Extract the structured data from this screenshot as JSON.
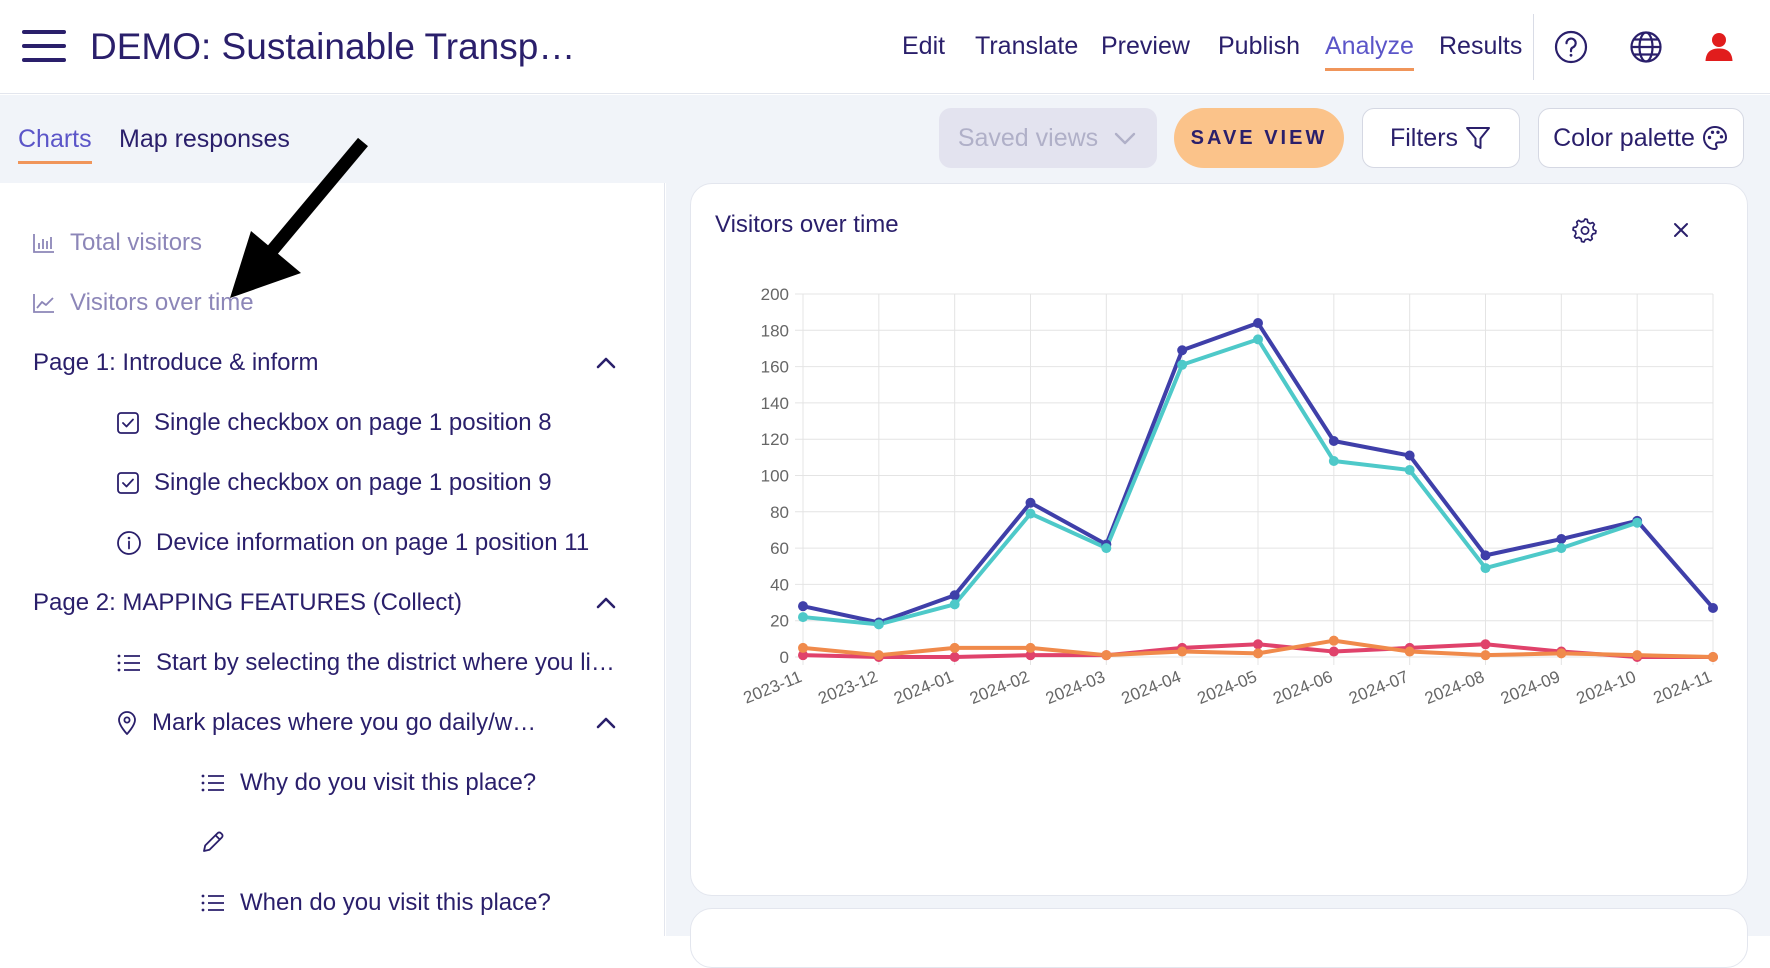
{
  "header": {
    "title": "DEMO: Sustainable Transp…",
    "nav": [
      "Edit",
      "Translate",
      "Preview",
      "Publish",
      "Analyze",
      "Results"
    ],
    "active_nav": "Analyze",
    "icons": [
      "help-circle-icon",
      "globe-icon",
      "user-icon"
    ],
    "user_icon_color": "#e11d1d"
  },
  "toolbar": {
    "tabs": [
      "Charts",
      "Map responses"
    ],
    "active_tab": "Charts",
    "saved_views_label": "Saved views",
    "save_view_label": "SAVE VIEW",
    "filters_label": "Filters",
    "color_palette_label": "Color palette"
  },
  "sidebar": {
    "total_visitors": "Total visitors",
    "visitors_over_time": "Visitors over time",
    "page1": {
      "label": "Page 1: Introduce & inform",
      "items": [
        "Single checkbox on page 1 position 8",
        "Single checkbox on page 1 position 9",
        "Device information on page 1 position 11"
      ]
    },
    "page2": {
      "label": "Page 2: MAPPING FEATURES (Collect)",
      "items": [
        "Start by selecting the district where you li…",
        "Mark places where you go daily/w…"
      ],
      "subitems": [
        "Why do you visit this place?",
        "",
        "When do you visit this place?"
      ]
    }
  },
  "card": {
    "title": "Visitors over time"
  },
  "chart_data": {
    "type": "line",
    "title": "Visitors over time",
    "x": [
      "2023-11",
      "2023-12",
      "2024-01",
      "2024-02",
      "2024-03",
      "2024-04",
      "2024-05",
      "2024-06",
      "2024-07",
      "2024-08",
      "2024-09",
      "2024-10",
      "2024-11"
    ],
    "ylim": [
      0,
      200
    ],
    "yticks": [
      0,
      20,
      40,
      60,
      80,
      100,
      120,
      140,
      160,
      180,
      200
    ],
    "grid": true,
    "series": [
      {
        "color": "#3f3fa9",
        "values": [
          28,
          19,
          34,
          85,
          62,
          169,
          184,
          119,
          111,
          56,
          65,
          75,
          27
        ]
      },
      {
        "color": "#4ec9c9",
        "values": [
          22,
          18,
          29,
          79,
          60,
          161,
          175,
          108,
          103,
          49,
          60,
          74,
          null
        ]
      },
      {
        "color": "#e0426b",
        "values": [
          1,
          0,
          0,
          1,
          1,
          5,
          7,
          3,
          5,
          7,
          3,
          0,
          0
        ]
      },
      {
        "color": "#f08a4b",
        "values": [
          5,
          1,
          5,
          5,
          1,
          3,
          2,
          9,
          3,
          1,
          2,
          1,
          0
        ]
      }
    ]
  }
}
